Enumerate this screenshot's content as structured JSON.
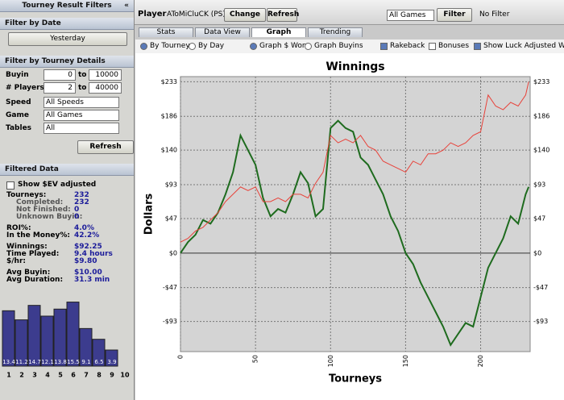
{
  "left_panel": {
    "title": "Tourney Result Filters",
    "collapse": "«",
    "filter_by_date": {
      "heading": "Filter by Date",
      "button": "Yesterday"
    },
    "filter_by_details": {
      "heading": "Filter by Tourney Details",
      "buyin": {
        "label": "Buyin",
        "from": "0",
        "to_text": "to",
        "to": "10000"
      },
      "players": {
        "label": "# Players",
        "from": "2",
        "to_text": "to",
        "to": "40000"
      },
      "speed": {
        "label": "Speed",
        "value": "All Speeds"
      },
      "game": {
        "label": "Game",
        "value": "All Games"
      },
      "tables": {
        "label": "Tables",
        "value": "All"
      },
      "button": "Refresh"
    },
    "filtered_data": {
      "heading": "Filtered Data",
      "checkbox": "Show $EV adjusted",
      "stats": [
        [
          "Tourneys:",
          "232"
        ],
        [
          "Completed:",
          "232"
        ],
        [
          "Not Finished:",
          "0"
        ],
        [
          "Unknown Buyin:",
          "0"
        ],
        [
          "ROI%:",
          "4.0%"
        ],
        [
          "In the Money%:",
          "42.2%"
        ],
        [
          "Winnings:",
          "$92.25"
        ],
        [
          "Time Played:",
          "9.4 hours"
        ],
        [
          "$/hr:",
          "$9.80"
        ],
        [
          "Avg Buyin:",
          "$10.00"
        ],
        [
          "Avg Duration:",
          "31.3 min"
        ]
      ]
    }
  },
  "toolbar": {
    "player_label": "Player",
    "player": "AToMiCluCK (PS)",
    "change": "Change",
    "refresh": "Refresh",
    "games": "All Games",
    "filter": "Filter",
    "filter_status": "No Filter"
  },
  "tabs": [
    "Stats",
    "Data View",
    "Graph",
    "Trending"
  ],
  "options": {
    "by_tourney": "By Tourney",
    "by_day": "By Day",
    "graph_won": "Graph $ Won",
    "graph_buyins": "Graph Buyins",
    "rakeback": "Rakeback",
    "bonuses": "Bonuses",
    "luck": "Show Luck Adjusted Winn"
  },
  "chart_data": [
    {
      "type": "line",
      "title": "Winnings",
      "y_label": "Dollars",
      "x_label": "Tourneys",
      "grid": true,
      "x": [
        0,
        5,
        10,
        15,
        20,
        25,
        30,
        35,
        40,
        45,
        50,
        55,
        60,
        65,
        70,
        75,
        80,
        85,
        90,
        95,
        100,
        105,
        110,
        115,
        120,
        125,
        130,
        135,
        140,
        145,
        150,
        155,
        160,
        165,
        170,
        175,
        180,
        185,
        190,
        195,
        200,
        205,
        210,
        215,
        220,
        225,
        230,
        232
      ],
      "series": [
        {
          "color": "#1e6b1e",
          "values": [
            0,
            15,
            25,
            45,
            40,
            55,
            80,
            110,
            160,
            140,
            120,
            75,
            50,
            60,
            55,
            80,
            110,
            95,
            50,
            60,
            170,
            180,
            170,
            165,
            130,
            120,
            100,
            80,
            50,
            30,
            0,
            -15,
            -40,
            -60,
            -80,
            -100,
            -125,
            -110,
            -95,
            -100,
            -60,
            -20,
            0,
            20,
            50,
            40,
            80,
            90
          ]
        },
        {
          "color": "#e8423a",
          "values": [
            15,
            20,
            30,
            35,
            45,
            55,
            70,
            80,
            90,
            85,
            90,
            70,
            70,
            75,
            70,
            80,
            80,
            75,
            95,
            110,
            160,
            150,
            155,
            150,
            160,
            145,
            140,
            125,
            120,
            115,
            110,
            125,
            120,
            135,
            135,
            140,
            150,
            145,
            150,
            160,
            165,
            215,
            200,
            195,
            205,
            200,
            215,
            233
          ]
        }
      ],
      "xlim": [
        0,
        233
      ],
      "xticks": [
        0,
        50,
        100,
        150,
        200
      ],
      "ylim": [
        -134,
        240
      ],
      "yticks": [
        {
          "value": 233,
          "label": "$233"
        },
        {
          "value": 186,
          "label": "$186"
        },
        {
          "value": 140,
          "label": "$140"
        },
        {
          "value": 93,
          "label": "$93"
        },
        {
          "value": 47,
          "label": "$47"
        },
        {
          "value": 0,
          "label": "$0"
        },
        {
          "value": -47,
          "label": "-$47"
        },
        {
          "value": -93,
          "label": "-$93"
        }
      ]
    },
    {
      "type": "bar",
      "color": "#3c3c8e",
      "categories": [
        "1",
        "2",
        "3",
        "4",
        "5",
        "6",
        "7",
        "8",
        "9",
        "10"
      ],
      "values": [
        13.4,
        11.2,
        14.7,
        12.1,
        13.8,
        15.5,
        9.1,
        6.5,
        3.9,
        null
      ],
      "ylim": [
        0,
        16
      ]
    }
  ]
}
